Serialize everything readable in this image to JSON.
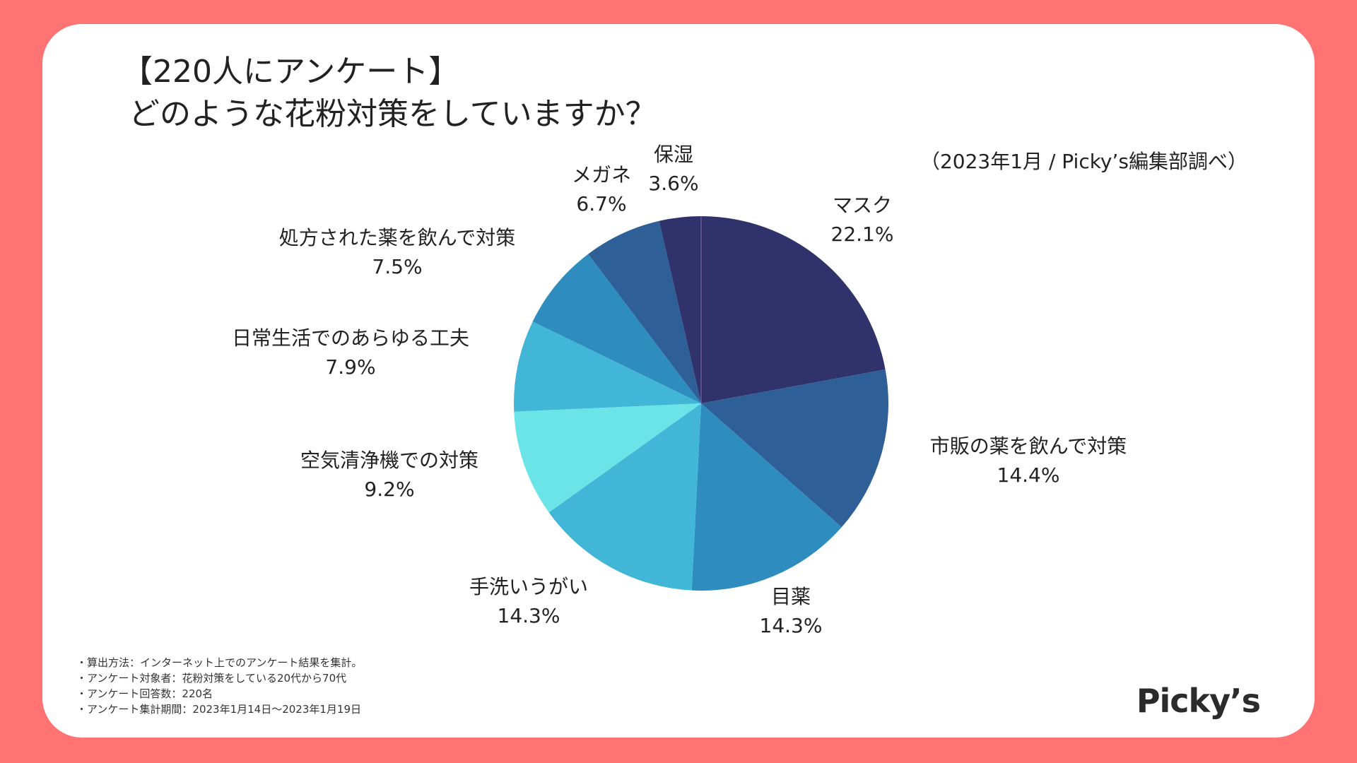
{
  "header": {
    "title_line1": "【220人にアンケート】",
    "title_line2": "どのような花粉対策をしていますか？",
    "source": "（2023年1月 / Picky’s編集部調べ）"
  },
  "chart_data": {
    "type": "pie",
    "title": "どのような花粉対策をしていますか？",
    "unit": "%",
    "start": "12 o'clock, clockwise",
    "slices": [
      {
        "label": "マスク",
        "value": 22.1,
        "display": "22.1%",
        "color": "#30336b"
      },
      {
        "label": "市販の薬を飲んで対策",
        "value": 14.4,
        "display": "14.4%",
        "color": "#2e5f96"
      },
      {
        "label": "目薬",
        "value": 14.3,
        "display": "14.3%",
        "color": "#2f8cbe"
      },
      {
        "label": "手洗いうがい",
        "value": 14.3,
        "display": "14.3%",
        "color": "#42b6d6"
      },
      {
        "label": "空気清浄機での対策",
        "value": 9.2,
        "display": "9.2%",
        "color": "#6be4e8"
      },
      {
        "label": "日常生活でのあらゆる工夫",
        "value": 7.9,
        "display": "7.9%",
        "color": "#42b6d6"
      },
      {
        "label": "処方された薬を飲んで対策",
        "value": 7.5,
        "display": "7.5%",
        "color": "#2f8cbe"
      },
      {
        "label": "メガネ",
        "value": 6.7,
        "display": "6.7%",
        "color": "#2e5f96"
      },
      {
        "label": "保湿",
        "value": 3.6,
        "display": "3.6%",
        "color": "#30336b"
      }
    ]
  },
  "footnotes": [
    "・算出方法：インターネット上でのアンケート結果を集計。",
    "・アンケート対象者：花粉対策をしている20代から70代",
    "・アンケート回答数：220名",
    "・アンケート集計期間：2023年1月14日〜2023年1月19日"
  ],
  "logo": {
    "text": "Picky’s"
  }
}
